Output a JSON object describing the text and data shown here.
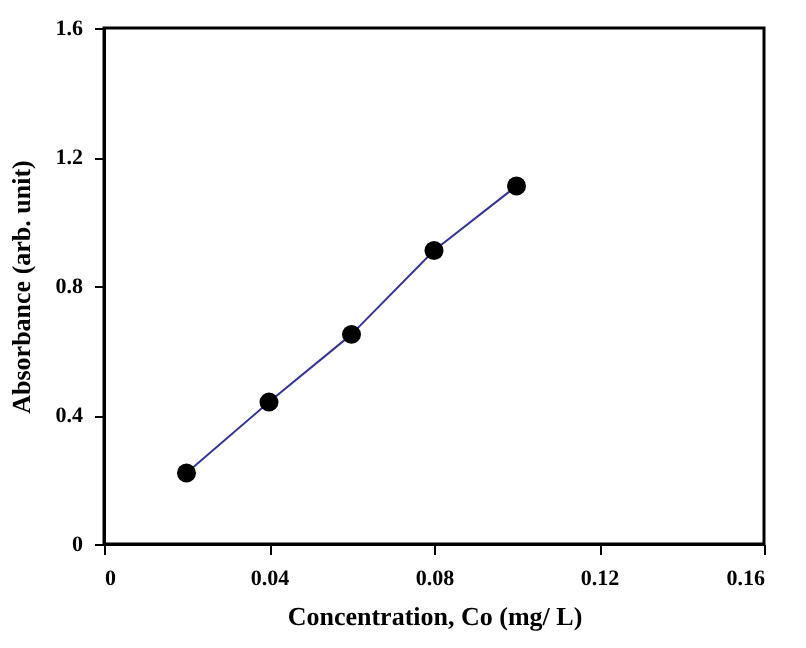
{
  "chart_data": {
    "type": "line",
    "xlabel": "Concentration, Co (mg/ L)",
    "ylabel": "Absorbance (arb. unit)",
    "x": [
      0.02,
      0.04,
      0.06,
      0.08,
      0.1
    ],
    "series": [
      {
        "type": "line",
        "color": "#333399",
        "marker": "none",
        "values": [
          0.22,
          0.44,
          0.65,
          0.91,
          1.11
        ]
      },
      {
        "type": "scatter",
        "color": "#000000",
        "marker": "circle",
        "values": [
          0.22,
          0.44,
          0.65,
          0.91,
          1.11
        ]
      }
    ],
    "xlim": [
      0,
      0.16
    ],
    "xticks": [
      0,
      0.04,
      0.08,
      0.12,
      0.16
    ],
    "ylim": [
      0,
      1.6
    ],
    "yticks": [
      0,
      0.4,
      0.8,
      1.2,
      1.6
    ],
    "grid": false
  }
}
